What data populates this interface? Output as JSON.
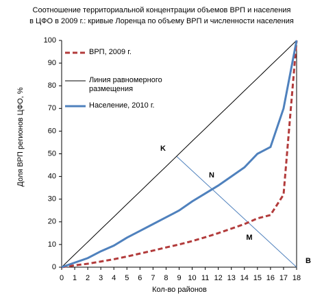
{
  "chart_data": {
    "type": "line",
    "title": [
      "Соотношение территориальной концентрации объемов ВРП и населения",
      "в ЦФО в 2009 г.: кривые Лоренца по объему ВРП и численности населения"
    ],
    "x_label": "Кол-во районов",
    "y_label": "Доля ВРП регионов ЦФО, %",
    "x": [
      0,
      1,
      2,
      3,
      4,
      5,
      6,
      7,
      8,
      9,
      10,
      11,
      12,
      13,
      14,
      15,
      16,
      17,
      18
    ],
    "series": [
      {
        "name": "ВРП, 2009 г.",
        "color": "#b23b3b",
        "dash": true,
        "width": 3,
        "values": [
          0,
          0.8,
          1.5,
          2.5,
          3.5,
          4.7,
          6,
          7.3,
          8.7,
          10,
          11.5,
          13.2,
          15,
          17,
          19,
          21.5,
          23,
          32,
          100
        ]
      },
      {
        "name": "Линия равномерного размещения",
        "color": "#000000",
        "dash": false,
        "width": 1,
        "values": [
          0,
          5.6,
          11.1,
          16.7,
          22.2,
          27.8,
          33.3,
          38.9,
          44.4,
          50,
          55.6,
          61.1,
          66.7,
          72.2,
          77.8,
          83.3,
          88.9,
          94.4,
          100
        ]
      },
      {
        "name": "Население, 2010 г.",
        "color": "#4f81bd",
        "dash": false,
        "width": 3,
        "values": [
          0,
          2,
          4,
          7,
          9.5,
          13,
          16,
          19,
          22,
          25,
          29,
          32.5,
          36,
          40,
          44,
          50,
          53,
          70,
          100
        ]
      }
    ],
    "guide_line": {
      "x": [
        8.8,
        18
      ],
      "y": [
        48.9,
        0
      ],
      "color": "#4f81bd"
    },
    "annotations": [
      "K",
      "N",
      "M",
      "B"
    ],
    "xlim": [
      0,
      18
    ],
    "ylim": [
      0,
      100
    ],
    "xticks": [
      0,
      1,
      2,
      3,
      4,
      5,
      6,
      7,
      8,
      9,
      10,
      11,
      12,
      13,
      14,
      15,
      16,
      17,
      18
    ],
    "yticks": [
      0,
      10,
      20,
      30,
      40,
      50,
      60,
      70,
      80,
      90,
      100
    ],
    "grid": false,
    "legend": "top-left"
  }
}
